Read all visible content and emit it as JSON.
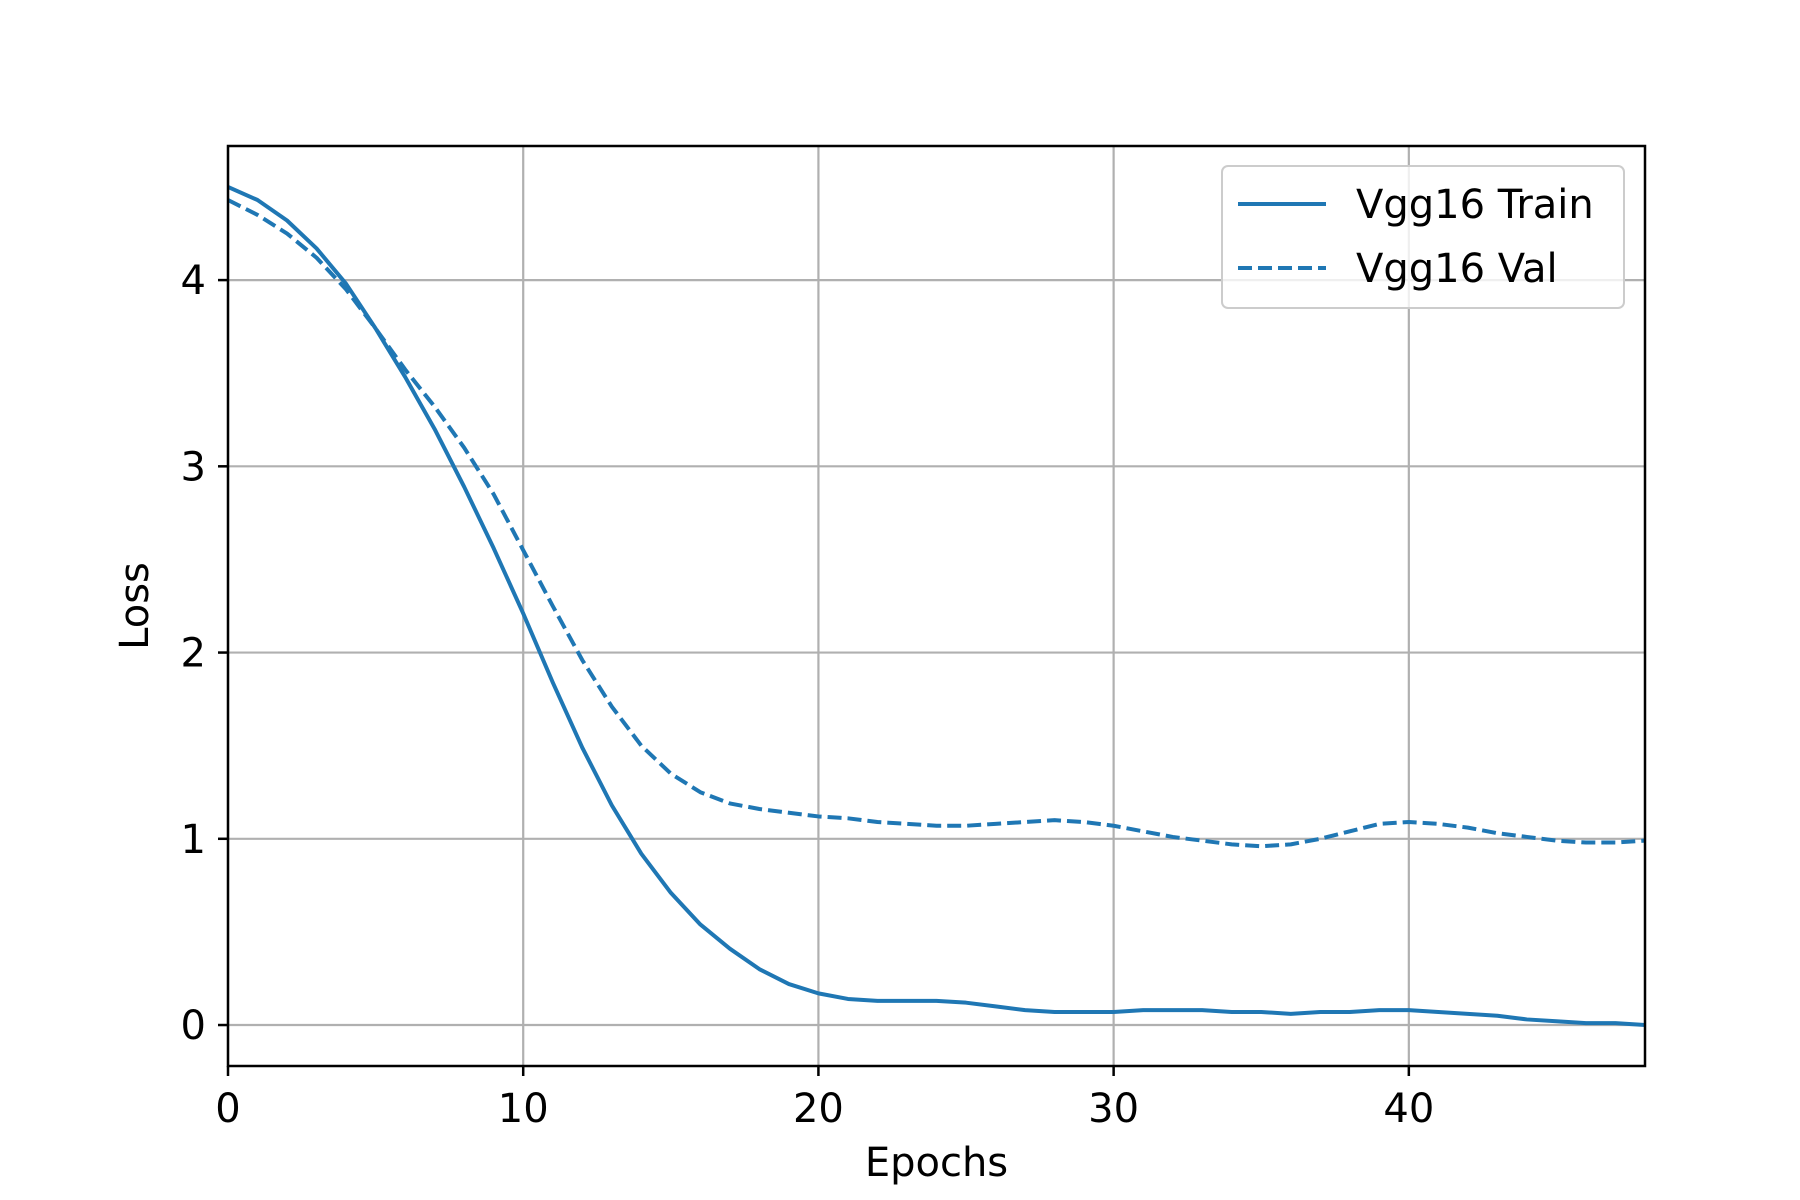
{
  "chart_data": {
    "type": "line",
    "title": "",
    "xlabel": "Epochs",
    "ylabel": "Loss",
    "xlim": [
      0,
      48
    ],
    "ylim": [
      -0.22,
      4.72
    ],
    "xticks": [
      0,
      10,
      20,
      30,
      40
    ],
    "yticks": [
      0,
      1,
      2,
      3,
      4
    ],
    "grid": true,
    "legend_position": "top-right",
    "color": "#1f77b4",
    "x": [
      0,
      1,
      2,
      3,
      4,
      5,
      6,
      7,
      8,
      9,
      10,
      11,
      12,
      13,
      14,
      15,
      16,
      17,
      18,
      19,
      20,
      21,
      22,
      23,
      24,
      25,
      26,
      27,
      28,
      29,
      30,
      31,
      32,
      33,
      34,
      35,
      36,
      37,
      38,
      39,
      40,
      41,
      42,
      43,
      44,
      45,
      46,
      47,
      48
    ],
    "series": [
      {
        "name": "Vgg16 Train",
        "style": "solid",
        "values": [
          4.5,
          4.43,
          4.32,
          4.17,
          3.98,
          3.74,
          3.48,
          3.2,
          2.89,
          2.56,
          2.21,
          1.84,
          1.49,
          1.18,
          0.92,
          0.71,
          0.54,
          0.41,
          0.3,
          0.22,
          0.17,
          0.14,
          0.13,
          0.13,
          0.13,
          0.12,
          0.1,
          0.08,
          0.07,
          0.07,
          0.07,
          0.08,
          0.08,
          0.08,
          0.07,
          0.07,
          0.06,
          0.07,
          0.07,
          0.08,
          0.08,
          0.07,
          0.06,
          0.05,
          0.03,
          0.02,
          0.01,
          0.01,
          0.0
        ]
      },
      {
        "name": "Vgg16 Val",
        "style": "dashed",
        "values": [
          4.43,
          4.35,
          4.25,
          4.12,
          3.95,
          3.74,
          3.52,
          3.32,
          3.1,
          2.85,
          2.55,
          2.25,
          1.96,
          1.71,
          1.5,
          1.35,
          1.25,
          1.19,
          1.16,
          1.14,
          1.12,
          1.11,
          1.09,
          1.08,
          1.07,
          1.07,
          1.08,
          1.09,
          1.1,
          1.09,
          1.07,
          1.04,
          1.01,
          0.99,
          0.97,
          0.96,
          0.97,
          1.0,
          1.04,
          1.08,
          1.09,
          1.08,
          1.06,
          1.03,
          1.01,
          0.99,
          0.98,
          0.98,
          0.99
        ]
      }
    ]
  }
}
